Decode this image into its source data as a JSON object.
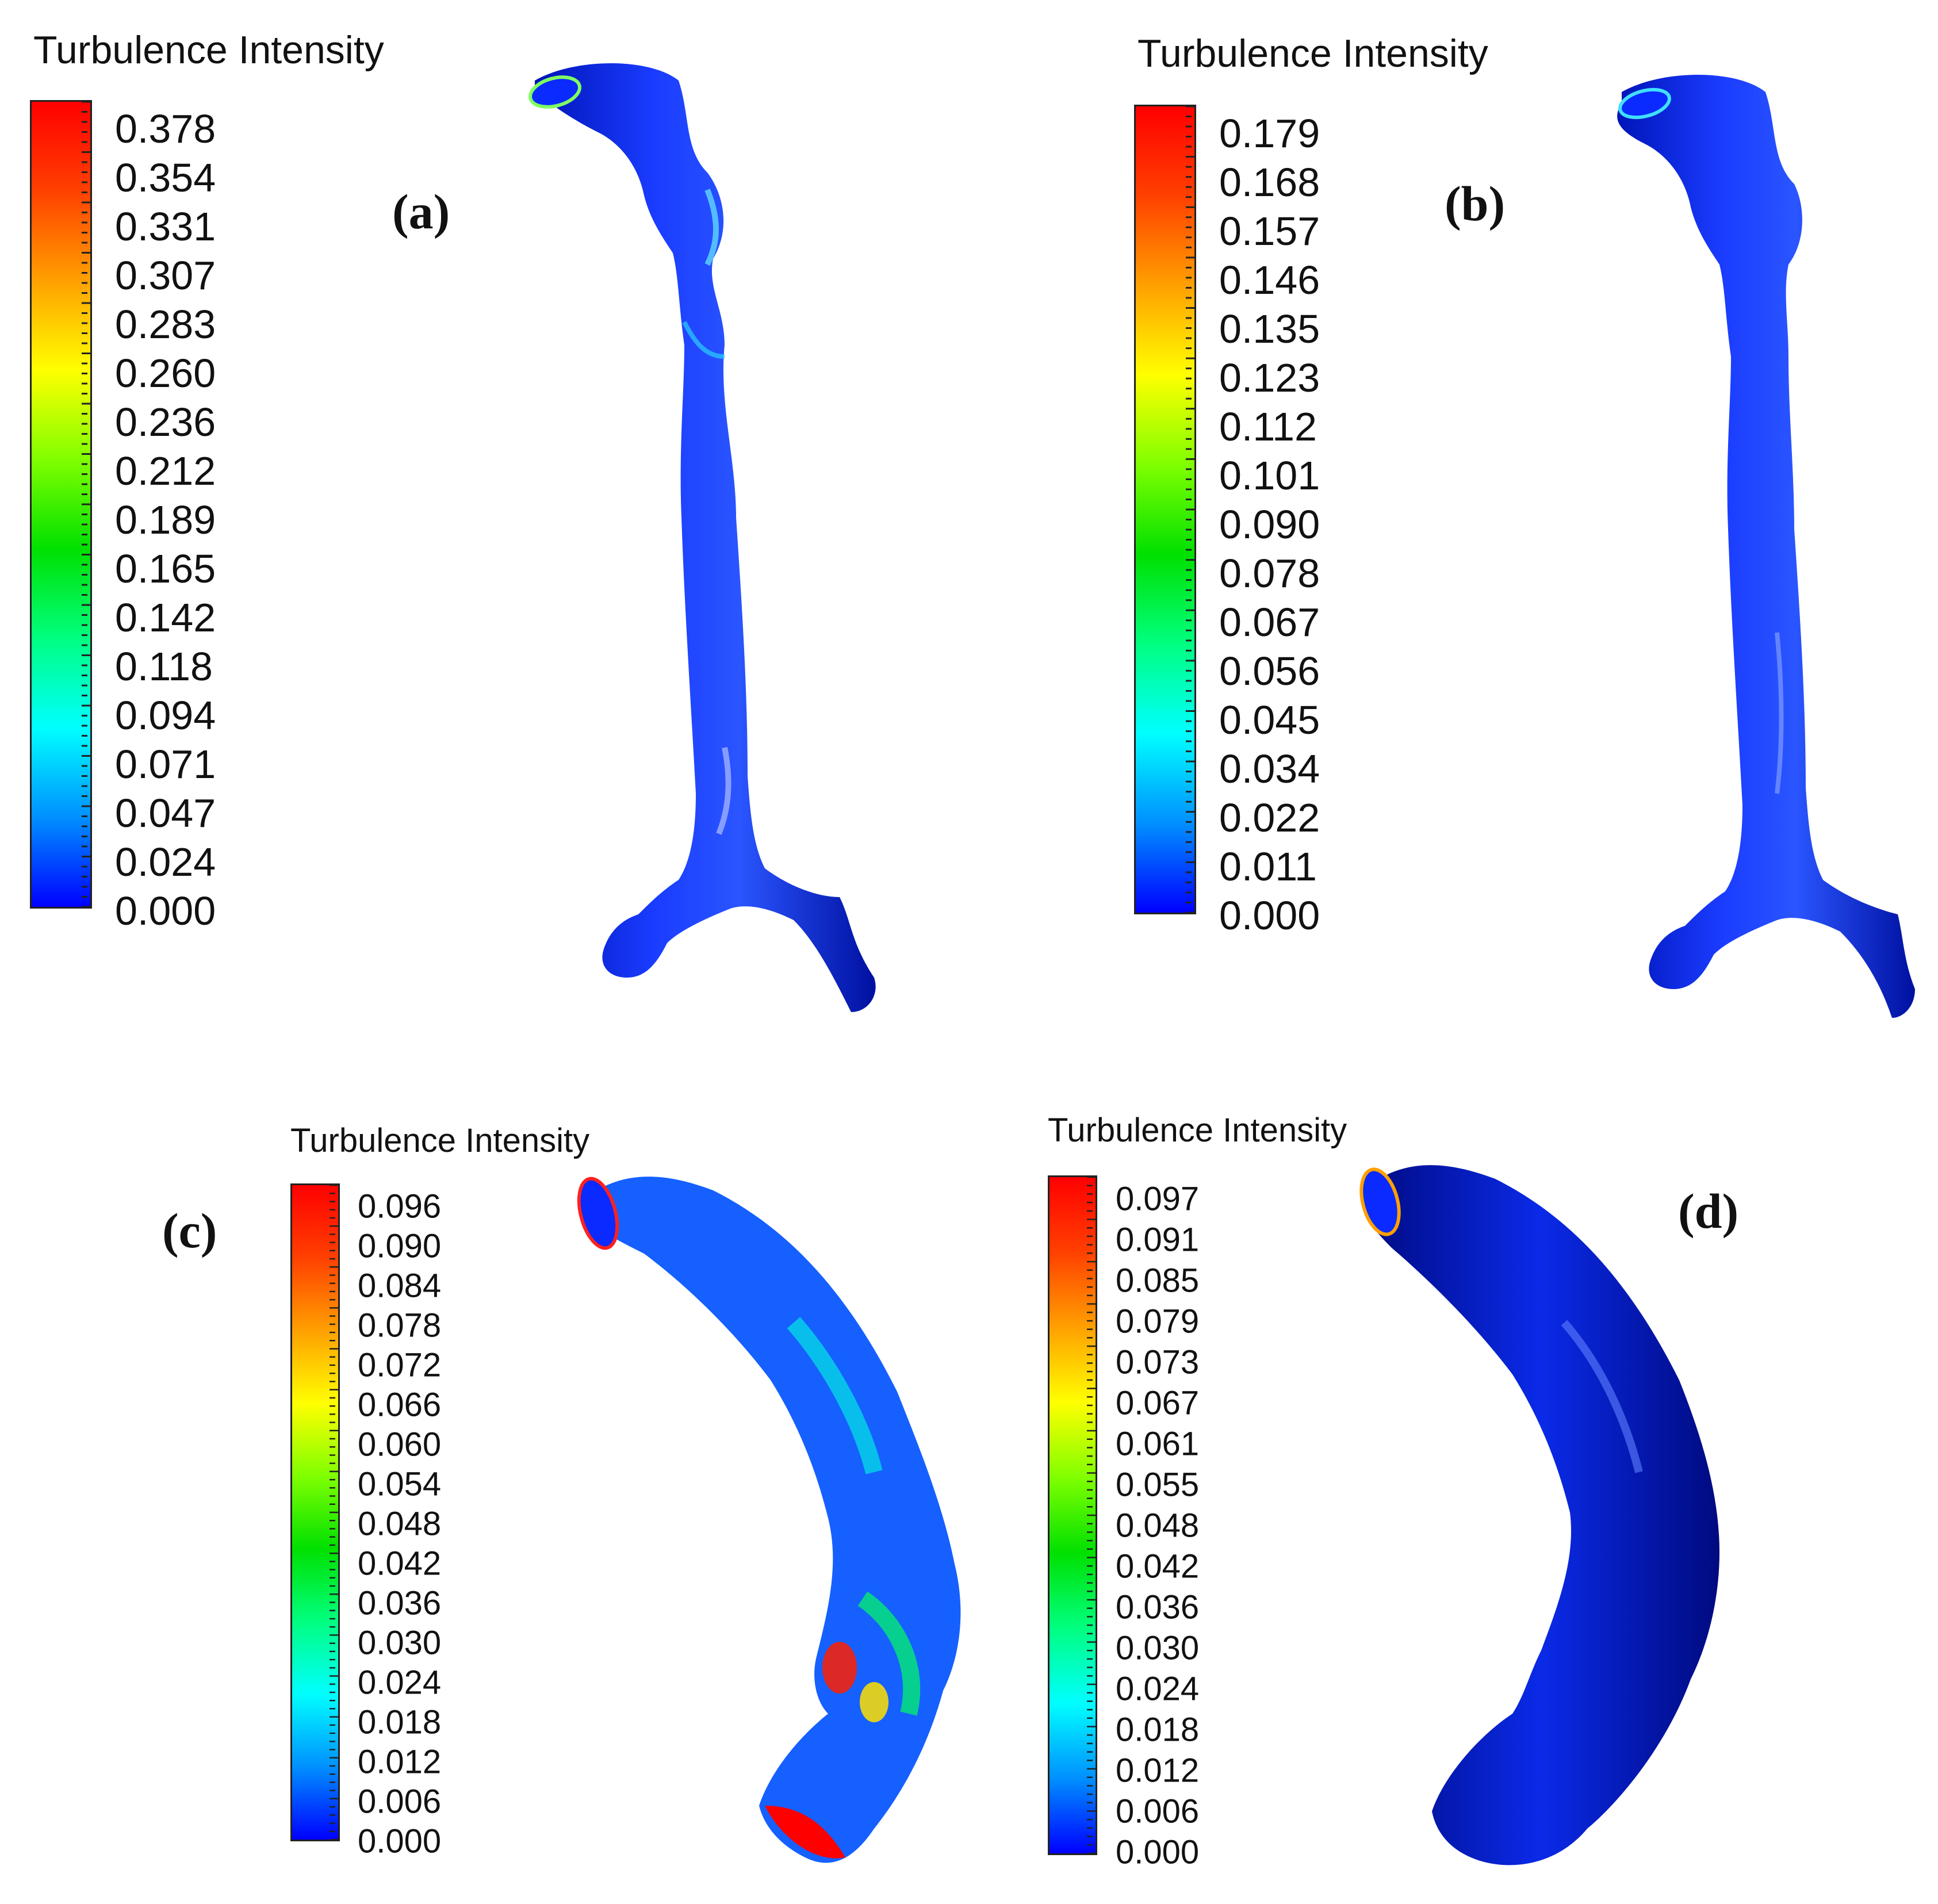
{
  "colorscale": [
    "#0000ff",
    "#0090ff",
    "#00ffff",
    "#00ff80",
    "#00e000",
    "#80ff00",
    "#ffff00",
    "#ffa000",
    "#ff4000",
    "#ff0000"
  ],
  "panels": [
    {
      "id": "a",
      "letter_text": "(a)",
      "colorbar_title": "Turbulence Intensity",
      "labels": [
        "0.378",
        "0.354",
        "0.331",
        "0.307",
        "0.283",
        "0.260",
        "0.236",
        "0.212",
        "0.189",
        "0.165",
        "0.142",
        "0.118",
        "0.094",
        "0.071",
        "0.047",
        "0.024",
        "0.000"
      ]
    },
    {
      "id": "b",
      "letter_text": "(b)",
      "colorbar_title": "Turbulence Intensity",
      "labels": [
        "0.179",
        "0.168",
        "0.157",
        "0.146",
        "0.135",
        "0.123",
        "0.112",
        "0.101",
        "0.090",
        "0.078",
        "0.067",
        "0.056",
        "0.045",
        "0.034",
        "0.022",
        "0.011",
        "0.000"
      ]
    },
    {
      "id": "c",
      "letter_text": "(c)",
      "colorbar_title": "Turbulence Intensity",
      "labels": [
        "0.096",
        "0.090",
        "0.084",
        "0.078",
        "0.072",
        "0.066",
        "0.060",
        "0.054",
        "0.048",
        "0.042",
        "0.036",
        "0.030",
        "0.024",
        "0.018",
        "0.012",
        "0.006",
        "0.000"
      ]
    },
    {
      "id": "d",
      "letter_text": "(d)",
      "colorbar_title": "Turbulence Intensity",
      "labels": [
        "0.097",
        "0.091",
        "0.085",
        "0.079",
        "0.073",
        "0.067",
        "0.061",
        "0.055",
        "0.048",
        "0.042",
        "0.036",
        "0.030",
        "0.024",
        "0.018",
        "0.012",
        "0.006",
        "0.000"
      ]
    }
  ]
}
